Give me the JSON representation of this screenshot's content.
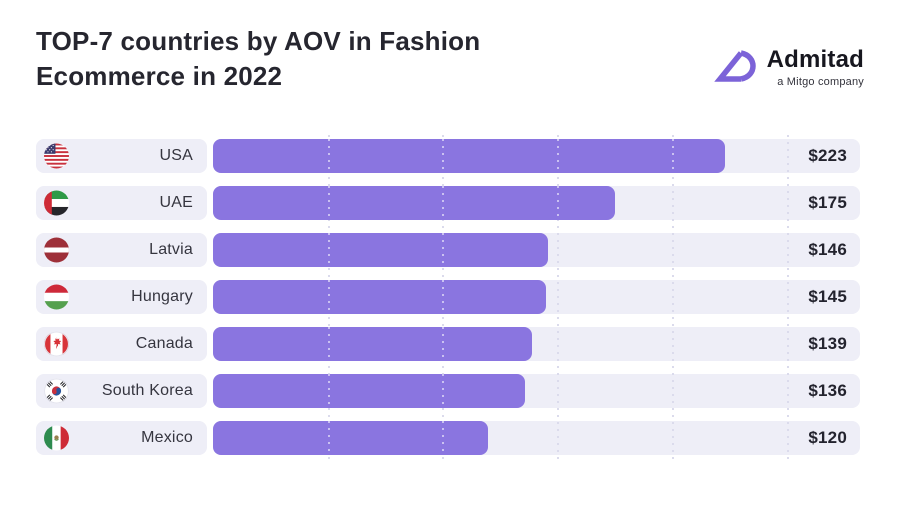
{
  "header": {
    "title": "TOP-7 countries by AOV in Fashion Ecommerce in 2022"
  },
  "logo": {
    "brand": "Admitad",
    "tagline": "a Mitgo company",
    "glyph_icon": "admitad-ad-monogram-icon",
    "accent_color": "#7C63D8"
  },
  "chart_data": {
    "type": "bar",
    "orientation": "horizontal",
    "title": "TOP-7 countries by AOV in Fashion Ecommerce in 2022",
    "categories": [
      "USA",
      "UAE",
      "Latvia",
      "Hungary",
      "Canada",
      "South Korea",
      "Mexico"
    ],
    "values": [
      223,
      175,
      146,
      145,
      139,
      136,
      120
    ],
    "value_labels": [
      "$223",
      "$175",
      "$146",
      "$145",
      "$139",
      "$136",
      "$120"
    ],
    "unit": "USD",
    "xlim": [
      0,
      282
    ],
    "gridlines": [
      50,
      100,
      150,
      200,
      250
    ],
    "grid_style": "dotted-vertical",
    "legend": "none",
    "bar_color": "#8A75E0",
    "track_color": "#EEEEF7",
    "rows": [
      {
        "code": "usa",
        "country": "USA",
        "value": 223,
        "label": "$223",
        "flag_icon": "flag-usa-icon"
      },
      {
        "code": "uae",
        "country": "UAE",
        "value": 175,
        "label": "$175",
        "flag_icon": "flag-uae-icon"
      },
      {
        "code": "lva",
        "country": "Latvia",
        "value": 146,
        "label": "$146",
        "flag_icon": "flag-latvia-icon"
      },
      {
        "code": "hun",
        "country": "Hungary",
        "value": 145,
        "label": "$145",
        "flag_icon": "flag-hungary-icon"
      },
      {
        "code": "can",
        "country": "Canada",
        "value": 139,
        "label": "$139",
        "flag_icon": "flag-canada-icon"
      },
      {
        "code": "kor",
        "country": "South Korea",
        "value": 136,
        "label": "$136",
        "flag_icon": "flag-south-korea-icon"
      },
      {
        "code": "mex",
        "country": "Mexico",
        "value": 120,
        "label": "$120",
        "flag_icon": "flag-mexico-icon"
      }
    ]
  }
}
